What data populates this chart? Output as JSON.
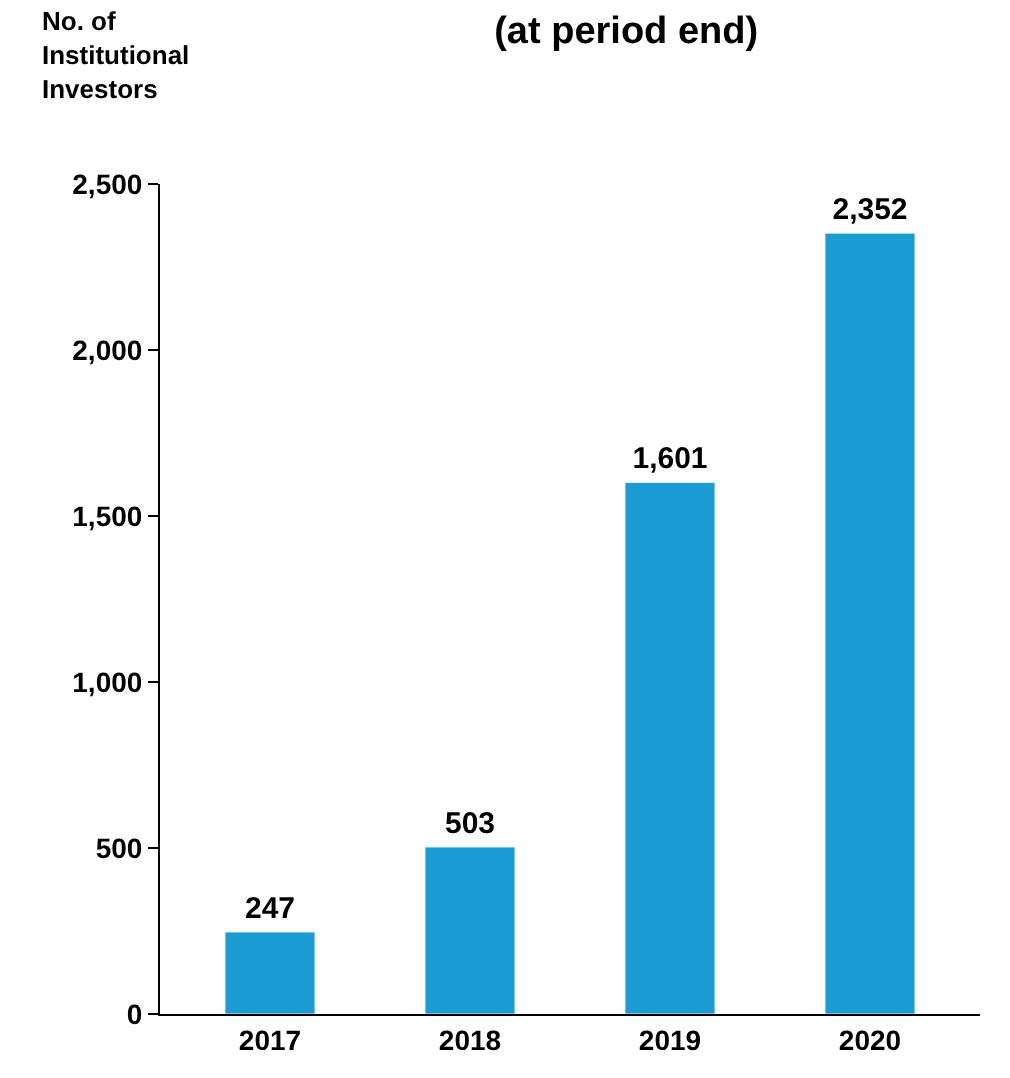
{
  "chart_data": {
    "type": "bar",
    "title": "(at period end)",
    "ylabel": "No. of\nInstitutional\nInvestors",
    "categories": [
      "2017",
      "2018",
      "2019",
      "2020"
    ],
    "values": [
      247,
      503,
      1601,
      2352
    ],
    "value_labels": [
      "247",
      "503",
      "1,601",
      "2,352"
    ],
    "color": "#1a9bd1",
    "ylim": [
      0,
      2500
    ],
    "yticks": [
      {
        "value": 0,
        "label": "0"
      },
      {
        "value": 500,
        "label": "500"
      },
      {
        "value": 1000,
        "label": "1,000"
      },
      {
        "value": 1500,
        "label": "1,500"
      },
      {
        "value": 2000,
        "label": "2,000"
      },
      {
        "value": 2500,
        "label": "2,500"
      }
    ]
  }
}
